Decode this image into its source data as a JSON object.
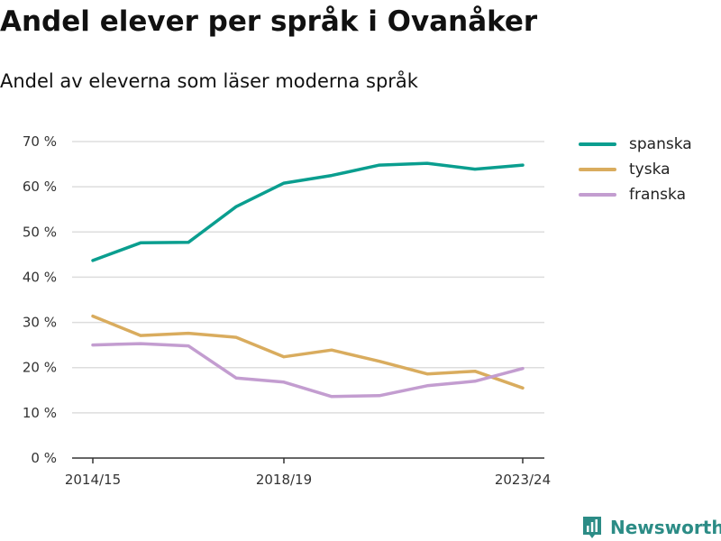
{
  "title": "Andel elever per språk i Ovanåker",
  "subtitle": "Andel av eleverna som läser moderna språk",
  "brand": {
    "name": "Newsworthy",
    "icon": "newsworthy-logo-icon",
    "color": "#2c8c86"
  },
  "chart_data": {
    "type": "line",
    "x": [
      "2014/15",
      "2015/16",
      "2016/17",
      "2017/18",
      "2018/19",
      "2019/20",
      "2020/21",
      "2021/22",
      "2022/23",
      "2023/24"
    ],
    "x_tick_labels": [
      "2014/15",
      "2018/19",
      "2023/24"
    ],
    "y_ticks": [
      "0 %",
      "10 %",
      "20 %",
      "30 %",
      "40 %",
      "50 %",
      "60 %",
      "70 %"
    ],
    "ylim": [
      0,
      70
    ],
    "grid": true,
    "legend_position": "top-right",
    "series": [
      {
        "name": "spanska",
        "color": "#0a9e8f",
        "values": [
          43.7,
          47.6,
          47.7,
          55.6,
          60.8,
          62.5,
          64.8,
          65.2,
          63.9,
          64.8
        ]
      },
      {
        "name": "tyska",
        "color": "#d9ac5e",
        "values": [
          31.4,
          27.1,
          27.6,
          26.7,
          22.4,
          23.9,
          21.4,
          18.6,
          19.2,
          15.5
        ]
      },
      {
        "name": "franska",
        "color": "#c39dd0",
        "values": [
          25.0,
          25.3,
          24.8,
          17.7,
          16.8,
          13.6,
          13.8,
          16.0,
          17.0,
          19.8
        ]
      }
    ]
  }
}
